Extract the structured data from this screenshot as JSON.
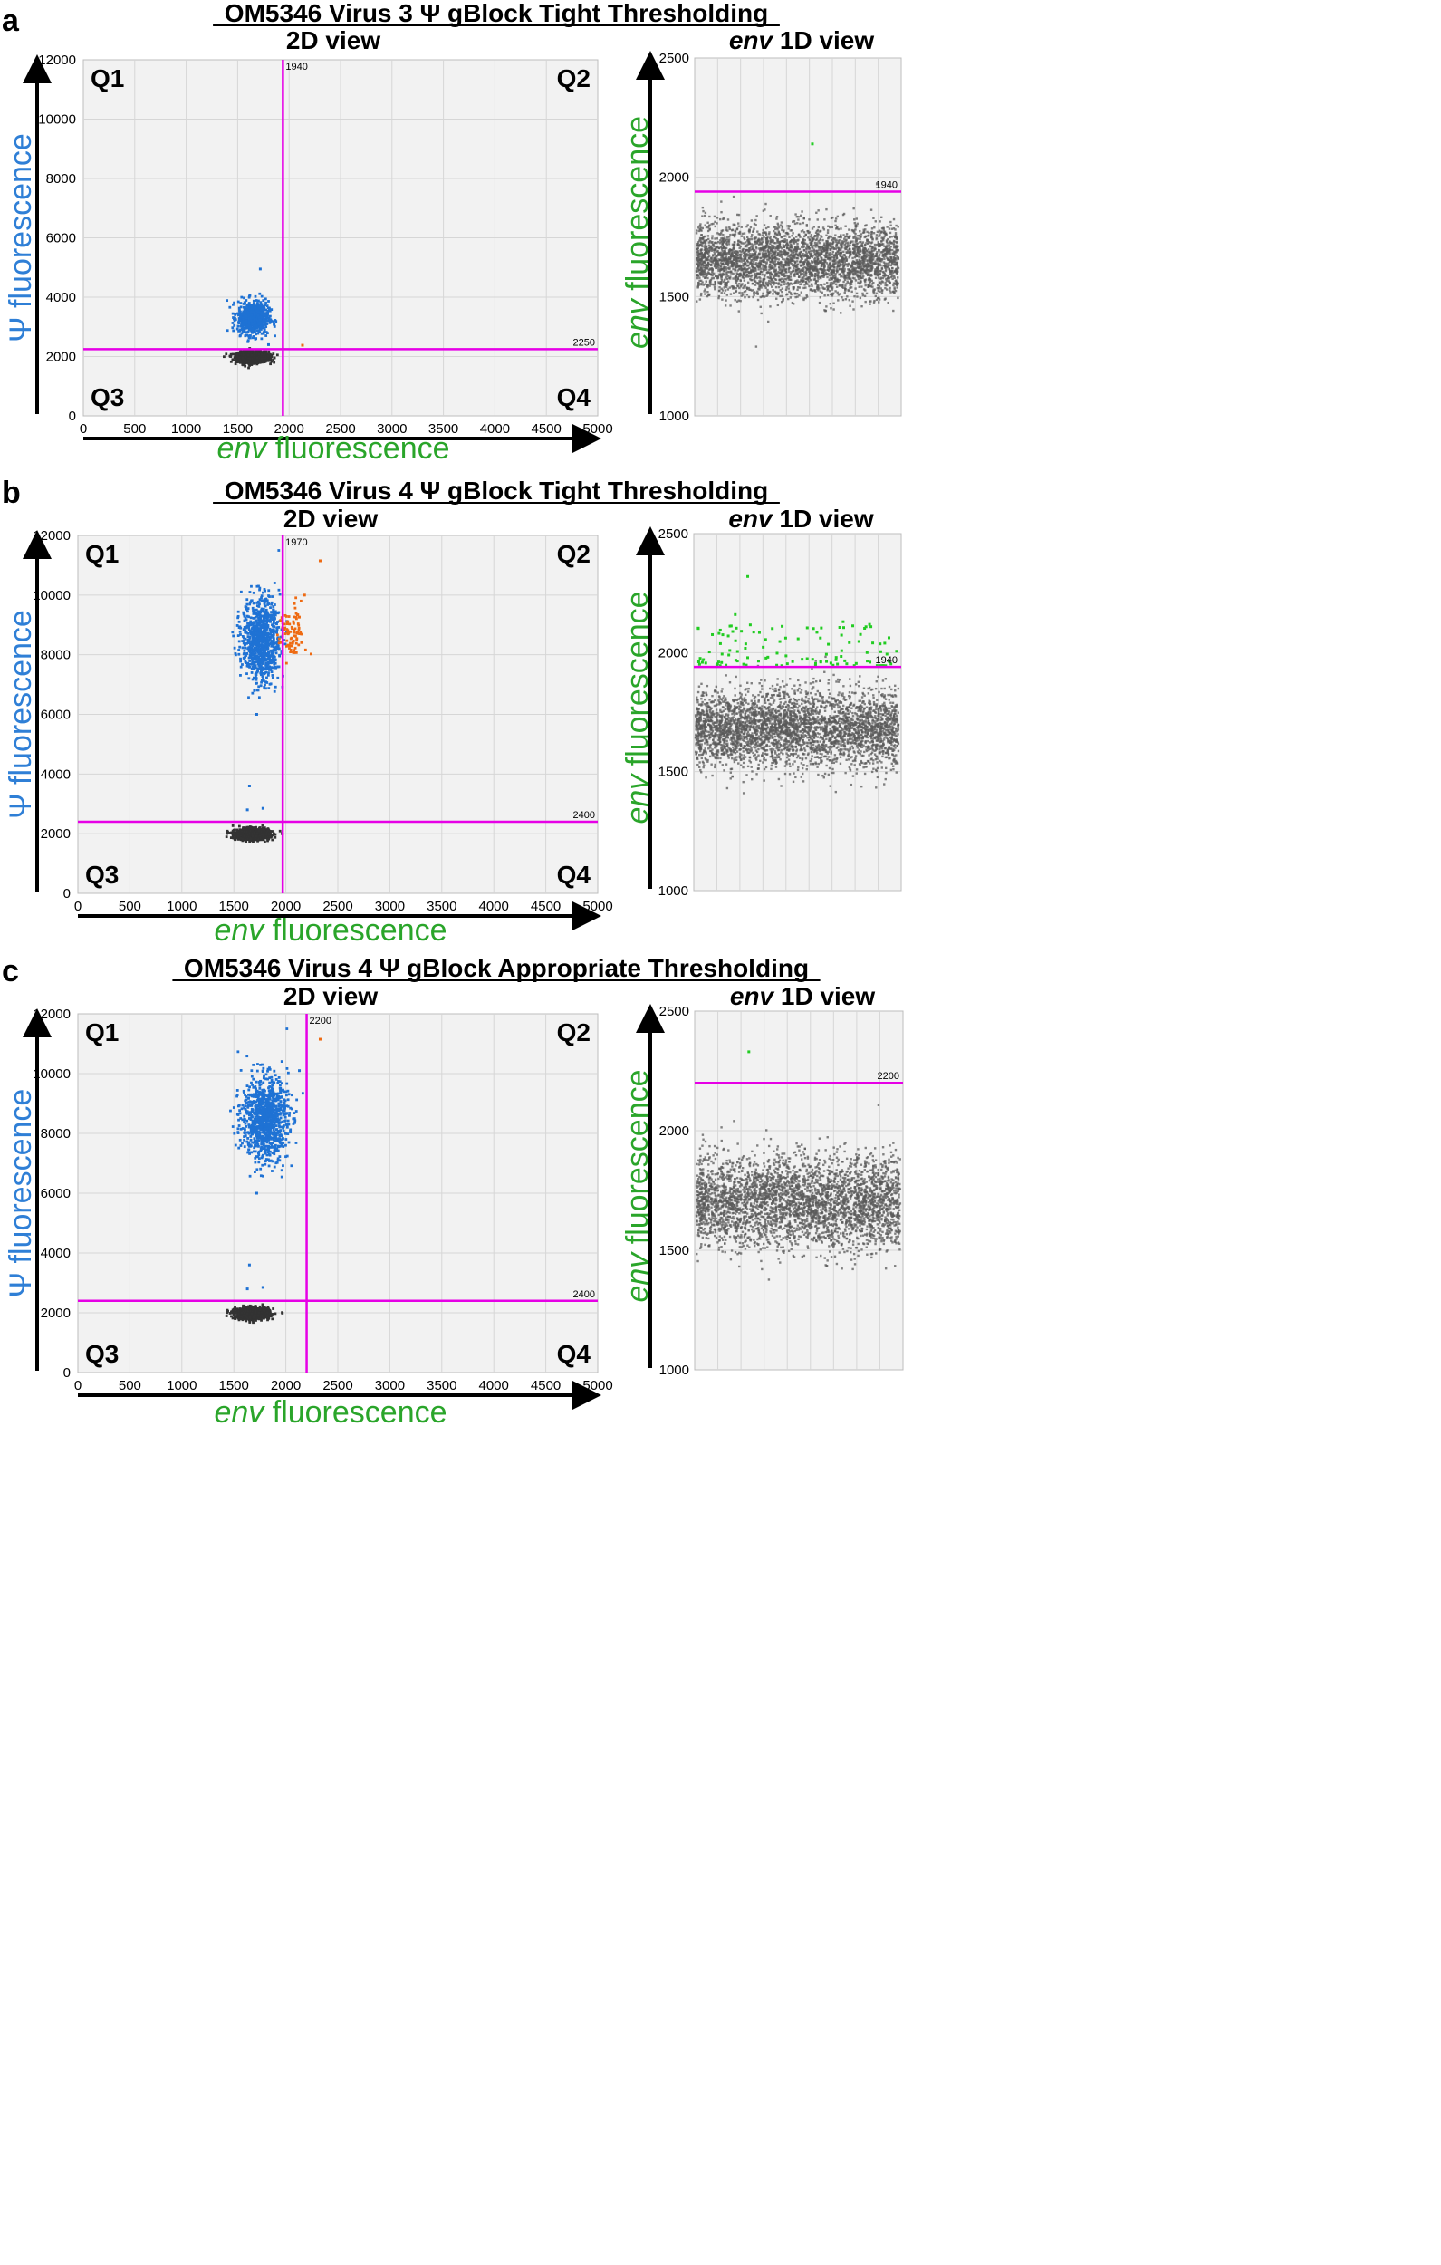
{
  "colors": {
    "psi": "#2f7fd6",
    "env": "#2aa52a",
    "threshold": "#e600e6",
    "pos_psi": "#1f72d4",
    "pos_both": "#ee6a12",
    "neg": "#333333",
    "env_pos_1d": "#22cc22",
    "plot_bg": "#f2f2f2",
    "grid": "#d6d6d6"
  },
  "chart_data": [
    {
      "panel_letter": "a",
      "title": "OM5346 Virus 3 Ψ gBlock Tight Thresholding",
      "view2d": {
        "type": "scatter",
        "title": "2D view",
        "xlabel_italic": "env",
        "xlabel_rest": " fluorescence",
        "ylabel": "Ψ fluorescence",
        "xlim": [
          0,
          5000
        ],
        "ylim": [
          0,
          12000
        ],
        "xticks": [
          "0",
          "500",
          "1000",
          "1500",
          "2000",
          "2500",
          "3000",
          "3500",
          "4000",
          "4500",
          "5000"
        ],
        "yticks": [
          "0",
          "2000",
          "4000",
          "6000",
          "8000",
          "10000",
          "12000"
        ],
        "x_threshold": 1940,
        "x_threshold_label": "1940",
        "y_threshold": 2250,
        "y_threshold_label": "2250",
        "quadrants": [
          "Q1",
          "Q2",
          "Q3",
          "Q4"
        ],
        "clusters": [
          {
            "name": "Q3 negatives",
            "color": "neg",
            "center": [
              1650,
              1980
            ],
            "spread": [
              75,
              90
            ],
            "n": 1200
          },
          {
            "name": "Q1 Ψ-positive",
            "color": "pos_psi",
            "center": [
              1650,
              3300
            ],
            "spread": [
              75,
              280
            ],
            "n": 700
          },
          {
            "name": "Q1 outliers",
            "color": "pos_psi",
            "points": [
              [
                1720,
                4950
              ],
              [
                1600,
                2500
              ],
              [
                1800,
                2400
              ]
            ]
          },
          {
            "name": "Q4 outlier",
            "color": "pos_both",
            "points": [
              [
                2130,
                2380
              ]
            ]
          }
        ]
      },
      "view1d": {
        "type": "scatter",
        "title_italic": "env",
        "title_rest": " 1D view",
        "ylabel_italic": "env",
        "ylabel_rest": " fluorescence",
        "ylim": [
          1000,
          2500
        ],
        "yticks": [
          "1000",
          "1500",
          "2000",
          "2500"
        ],
        "threshold": 1940,
        "threshold_label": "1940",
        "negatives": {
          "mean": 1650,
          "sd": 75,
          "n": 3500
        },
        "positives": [
          [
            0.57,
            2140
          ]
        ]
      }
    },
    {
      "panel_letter": "b",
      "title": "OM5346 Virus 4 Ψ gBlock Tight Thresholding",
      "view2d": {
        "type": "scatter",
        "title": "2D view",
        "xlabel_italic": "env",
        "xlabel_rest": " fluorescence",
        "ylabel": "Ψ fluorescence",
        "xlim": [
          0,
          5000
        ],
        "ylim": [
          0,
          12000
        ],
        "xticks": [
          "0",
          "500",
          "1000",
          "1500",
          "2000",
          "2500",
          "3000",
          "3500",
          "4000",
          "4500",
          "5000"
        ],
        "yticks": [
          "0",
          "2000",
          "4000",
          "6000",
          "8000",
          "10000",
          "12000"
        ],
        "x_threshold": 1970,
        "x_threshold_label": "1970",
        "y_threshold": 2400,
        "y_threshold_label": "2400",
        "quadrants": [
          "Q1",
          "Q2",
          "Q3",
          "Q4"
        ],
        "clusters": [
          {
            "name": "Q3 negatives",
            "color": "neg",
            "center": [
              1680,
              1980
            ],
            "spread": [
              80,
              90
            ],
            "n": 1200
          },
          {
            "name": "Q1 Ψ-positive",
            "color": "pos_psi",
            "center": [
              1760,
              8500
            ],
            "spread": [
              90,
              700
            ],
            "n": 900
          },
          {
            "name": "Q2 double-positive",
            "color": "pos_both",
            "center": [
              2060,
              8700
            ],
            "spread": [
              60,
              500
            ],
            "n": 90
          },
          {
            "name": "Q1 outliers",
            "color": "pos_psi",
            "points": [
              [
                1630,
                2800
              ],
              [
                1650,
                3600
              ],
              [
                1780,
                2850
              ],
              [
                1720,
                6000
              ]
            ]
          },
          {
            "name": "Q2 outliers",
            "color": "pos_both",
            "points": [
              [
                2330,
                11150
              ],
              [
                2180,
                10000
              ]
            ]
          }
        ]
      },
      "view1d": {
        "type": "scatter",
        "title_italic": "env",
        "title_rest": " 1D view",
        "ylabel_italic": "env",
        "ylabel_rest": " fluorescence",
        "ylim": [
          1000,
          2500
        ],
        "yticks": [
          "1000",
          "1500",
          "2000",
          "2500"
        ],
        "threshold": 1940,
        "threshold_label": "1940",
        "negatives": {
          "mean": 1680,
          "sd": 80,
          "n": 3500
        },
        "positives_count": 110,
        "positives_range": [
          1945,
          2120
        ],
        "positives": [
          [
            0.26,
            2320
          ],
          [
            0.2,
            2160
          ],
          [
            0.72,
            2130
          ]
        ]
      }
    },
    {
      "panel_letter": "c",
      "title": "OM5346 Virus 4 Ψ gBlock Appropriate Thresholding",
      "view2d": {
        "type": "scatter",
        "title": "2D view",
        "xlabel_italic": "env",
        "xlabel_rest": " fluorescence",
        "ylabel": "Ψ fluorescence",
        "xlim": [
          0,
          5000
        ],
        "ylim": [
          0,
          12000
        ],
        "xticks": [
          "0",
          "500",
          "1000",
          "1500",
          "2000",
          "2500",
          "3000",
          "3500",
          "4000",
          "4500",
          "5000"
        ],
        "yticks": [
          "0",
          "2000",
          "4000",
          "6000",
          "8000",
          "10000",
          "12000"
        ],
        "x_threshold": 2200,
        "x_threshold_label": "2200",
        "y_threshold": 2400,
        "y_threshold_label": "2400",
        "quadrants": [
          "Q1",
          "Q2",
          "Q3",
          "Q4"
        ],
        "clusters": [
          {
            "name": "Q3 negatives",
            "color": "neg",
            "center": [
              1680,
              1980
            ],
            "spread": [
              80,
              90
            ],
            "n": 1200
          },
          {
            "name": "Q1 Ψ-positive",
            "color": "pos_psi",
            "center": [
              1800,
              8500
            ],
            "spread": [
              110,
              700
            ],
            "n": 1000
          },
          {
            "name": "Q1 outliers",
            "color": "pos_psi",
            "points": [
              [
                1630,
                2800
              ],
              [
                1650,
                3600
              ],
              [
                1780,
                2850
              ],
              [
                1720,
                6000
              ],
              [
                2130,
                10100
              ]
            ]
          },
          {
            "name": "Q2 outlier",
            "color": "pos_both",
            "points": [
              [
                2330,
                11150
              ]
            ]
          }
        ]
      },
      "view1d": {
        "type": "scatter",
        "title_italic": "env",
        "title_rest": " 1D view",
        "ylabel_italic": "env",
        "ylabel_rest": " fluorescence",
        "ylim": [
          1000,
          2500
        ],
        "yticks": [
          "1000",
          "1500",
          "2000",
          "2500"
        ],
        "threshold": 2200,
        "threshold_label": "2200",
        "negatives": {
          "mean": 1700,
          "sd": 95,
          "n": 3500
        },
        "positives": [
          [
            0.26,
            2330
          ]
        ]
      }
    }
  ]
}
